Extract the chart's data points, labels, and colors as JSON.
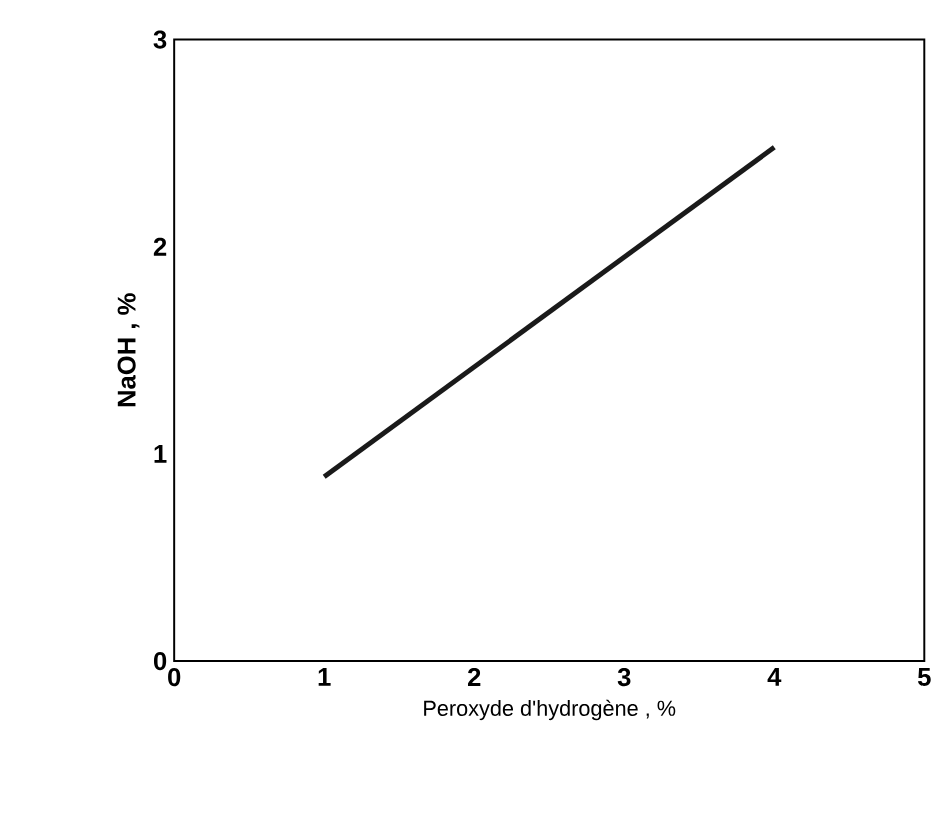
{
  "chart_data": {
    "type": "line",
    "xlabel": "Peroxyde d'hydrogène , %",
    "ylabel": "NaOH , %",
    "x": [
      1,
      4
    ],
    "series": [
      {
        "color": "#1a1a1a",
        "values": [
          0.89,
          2.48
        ]
      }
    ],
    "xlim": [
      0,
      5
    ],
    "ylim": [
      0,
      3
    ],
    "xticks": [
      0,
      1,
      2,
      3,
      4,
      5
    ],
    "yticks": [
      0,
      1,
      2,
      3
    ],
    "grid": false,
    "marker": "none",
    "line_style": "solid"
  }
}
